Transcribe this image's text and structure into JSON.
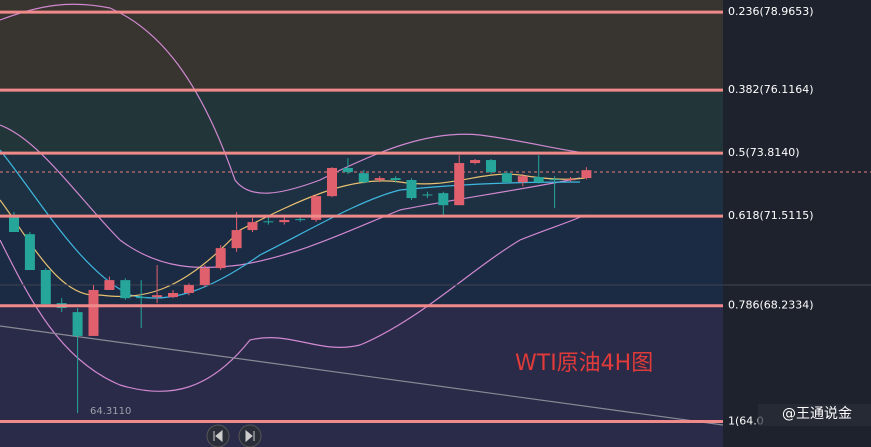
{
  "chart_data": {
    "type": "candlestick",
    "title": "WTI原油4H图",
    "watermark": "@王通说金",
    "low_label": {
      "label": "64.3110",
      "value": 64.311
    },
    "ylim": [
      63.07,
      79.41
    ],
    "fib_levels": [
      {
        "label": "0.236(78.9653)",
        "value": 78.9653,
        "band_color": "#38342f"
      },
      {
        "label": "0.382(76.1164)",
        "value": 76.1164,
        "band_color": "#22363a"
      },
      {
        "label": "0.5(73.8140)",
        "value": 73.814,
        "band_color": "#1d3142"
      },
      {
        "label": "0.618(71.5115)",
        "value": 71.5115,
        "band_color": "#1c2b44"
      },
      {
        "label": "0.786(68.2334)",
        "value": 68.2334,
        "band_color": "#2a2b48"
      },
      {
        "label": "1(64.0",
        "value": 64.0,
        "band_color": "#2a2b48"
      }
    ],
    "fib_color": "#f08a8a",
    "up_color": "#e0606e",
    "down_color": "#26a69a",
    "open": [
      71.55,
      70.85,
      69.54,
      68.33,
      68.0,
      67.13,
      68.81,
      69.17,
      68.55,
      68.55,
      68.55,
      68.7,
      68.99,
      69.61,
      70.34,
      71.0,
      71.32,
      71.29,
      71.4,
      71.37,
      72.24,
      73.27,
      73.08,
      72.83,
      72.9,
      72.83,
      72.3,
      72.35,
      71.91,
      73.45,
      73.56,
      73.08,
      72.75,
      72.94,
      72.86,
      72.83,
      72.9
    ],
    "high": [
      71.66,
      70.93,
      69.61,
      68.51,
      68.15,
      68.99,
      69.3,
      69.24,
      69.17,
      69.72,
      68.81,
      69.05,
      69.72,
      70.45,
      71.66,
      71.45,
      71.5,
      71.55,
      71.55,
      72.3,
      73.3,
      73.63,
      73.2,
      72.97,
      72.97,
      72.9,
      72.4,
      72.4,
      73.74,
      73.6,
      73.6,
      73.15,
      73.05,
      73.74,
      72.97,
      72.94,
      73.3
    ],
    "low": [
      70.93,
      69.54,
      68.29,
      68.0,
      64.31,
      67.13,
      68.81,
      68.45,
      67.42,
      68.33,
      68.51,
      68.62,
      68.92,
      69.54,
      70.2,
      70.93,
      71.2,
      71.2,
      71.3,
      71.3,
      72.2,
      73.05,
      72.7,
      72.75,
      72.75,
      72.1,
      72.17,
      71.55,
      71.91,
      73.4,
      73.05,
      72.7,
      72.6,
      72.7,
      71.8,
      72.78,
      72.85
    ],
    "close": [
      70.93,
      69.54,
      68.29,
      68.15,
      67.13,
      68.81,
      69.17,
      68.51,
      68.51,
      68.62,
      68.7,
      68.99,
      69.61,
      70.34,
      71.0,
      71.29,
      71.29,
      71.37,
      71.37,
      72.24,
      73.27,
      73.12,
      72.75,
      72.9,
      72.83,
      72.17,
      72.28,
      71.91,
      73.45,
      73.56,
      73.12,
      72.75,
      72.97,
      72.75,
      72.83,
      72.86,
      73.19
    ]
  }
}
